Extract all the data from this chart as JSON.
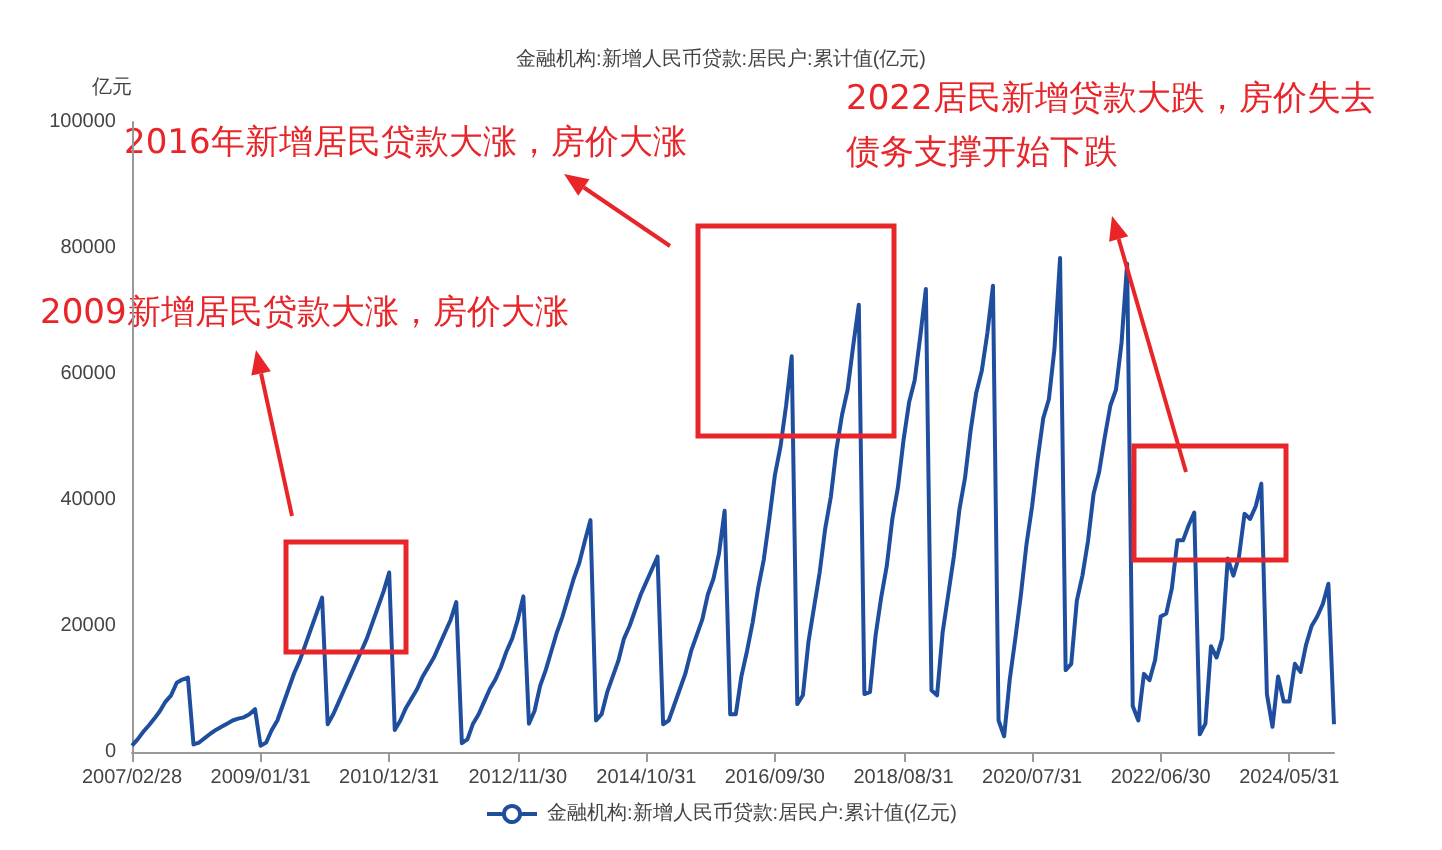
{
  "chart_data": {
    "type": "line",
    "title": "金融机构:新增人民币贷款:居民户:累计值(亿元)",
    "ylabel": "亿元",
    "categories": [
      "2007/02/28",
      null,
      null,
      null,
      null,
      null,
      null,
      null,
      null,
      null,
      null,
      null,
      null,
      null,
      null,
      null,
      null,
      null,
      null,
      null,
      null,
      null,
      null,
      "2009/01/31",
      null,
      null,
      null,
      null,
      null,
      null,
      null,
      null,
      null,
      null,
      null,
      null,
      null,
      null,
      null,
      null,
      null,
      null,
      null,
      null,
      null,
      null,
      "2010/12/31",
      null,
      null,
      null,
      null,
      null,
      null,
      null,
      null,
      null,
      null,
      null,
      null,
      null,
      null,
      null,
      null,
      null,
      null,
      null,
      null,
      null,
      null,
      "2012/11/30",
      null,
      null,
      null,
      null,
      null,
      null,
      null,
      null,
      null,
      null,
      null,
      null,
      null,
      null,
      null,
      null,
      null,
      null,
      null,
      null,
      null,
      null,
      "2014/10/31",
      null,
      null,
      null,
      null,
      null,
      null,
      null,
      null,
      null,
      null,
      null,
      null,
      null,
      null,
      null,
      null,
      null,
      null,
      null,
      null,
      null,
      null,
      "2016/09/30",
      null,
      null,
      null,
      null,
      null,
      null,
      null,
      null,
      null,
      null,
      null,
      null,
      null,
      null,
      null,
      null,
      null,
      null,
      null,
      null,
      null,
      null,
      "2018/08/31",
      null,
      null,
      null,
      null,
      null,
      null,
      null,
      null,
      null,
      null,
      null,
      null,
      null,
      null,
      null,
      null,
      null,
      null,
      null,
      null,
      null,
      null,
      "2020/07/31",
      null,
      null,
      null,
      null,
      null,
      null,
      null,
      null,
      null,
      null,
      null,
      null,
      null,
      null,
      null,
      null,
      null,
      null,
      null,
      null,
      null,
      null,
      "2022/06/30",
      null,
      null,
      null,
      null,
      null,
      null,
      null,
      null,
      null,
      null,
      null,
      null,
      null,
      null,
      null,
      null,
      null,
      null,
      null,
      null,
      null,
      null,
      "2024/05/31",
      null,
      null,
      null,
      null,
      null,
      null,
      null,
      null
    ],
    "series": [
      {
        "name": "金融机构:新增人民币贷款:居民户:累计值(亿元)",
        "color": "#1f4e9e",
        "values": [
          1000,
          2000,
          3200,
          4200,
          5300,
          6500,
          8000,
          9000,
          11000,
          11500,
          11800,
          1200,
          1500,
          2200,
          2900,
          3500,
          4000,
          4500,
          5000,
          5300,
          5500,
          6000,
          6800,
          1000,
          1500,
          3500,
          5000,
          7500,
          10000,
          12500,
          14500,
          17000,
          19500,
          22000,
          24500,
          4400,
          6000,
          8000,
          10000,
          12000,
          14000,
          16000,
          18000,
          20500,
          23000,
          25500,
          28500,
          3500,
          5000,
          7000,
          8500,
          10000,
          12000,
          13500,
          15000,
          17000,
          19000,
          21000,
          23800,
          1400,
          2000,
          4500,
          6000,
          8000,
          10000,
          11500,
          13500,
          16000,
          18000,
          21000,
          24700,
          4500,
          6500,
          10500,
          13000,
          16000,
          19000,
          21500,
          24500,
          27500,
          30000,
          33500,
          36800,
          5000,
          6000,
          9500,
          12000,
          14500,
          18000,
          20000,
          22500,
          25000,
          27000,
          29000,
          31000,
          4400,
          5000,
          7500,
          10000,
          12500,
          16000,
          18500,
          21000,
          25000,
          27500,
          31500,
          38300,
          6000,
          6000,
          12000,
          16000,
          20500,
          26000,
          30500,
          37000,
          44000,
          48500,
          55000,
          62800,
          7600,
          9000,
          17500,
          23000,
          28500,
          35500,
          40500,
          48000,
          53500,
          57500,
          64500,
          71000,
          9200,
          9500,
          18500,
          24500,
          29500,
          37000,
          42000,
          49500,
          55500,
          59000,
          66000,
          73500,
          9800,
          9000,
          19000,
          25000,
          31000,
          38500,
          43500,
          51000,
          57000,
          60500,
          66500,
          74000,
          5000,
          2500,
          11500,
          18000,
          25000,
          33000,
          39000,
          46500,
          53000,
          56000,
          64000,
          78400,
          13000,
          14000,
          24000,
          28000,
          33500,
          41000,
          44500,
          50000,
          55000,
          57500,
          65000,
          77500,
          7300,
          5000,
          12400,
          11400,
          14600,
          21500,
          22000,
          26000,
          33600,
          33600,
          36000,
          38000,
          2800,
          4500,
          16800,
          15000,
          18000,
          30700,
          28000,
          31000,
          37800,
          37000,
          39000,
          42600,
          9200,
          4000,
          12000,
          8000,
          8000,
          14000,
          12700,
          17000,
          20000,
          21500,
          23500,
          26700,
          4400
        ]
      }
    ],
    "ylim": [
      0,
      100000
    ],
    "yticks": [
      0,
      20000,
      40000,
      60000,
      80000,
      100000
    ],
    "legend": "bottom",
    "marker": "none",
    "annotations": [
      "2016年新增居民贷款大涨，房价大涨",
      "2009新增居民贷款大涨，房价大涨",
      "2022居民新增贷款大跌，房价失去债务支撑开始下跌"
    ]
  }
}
